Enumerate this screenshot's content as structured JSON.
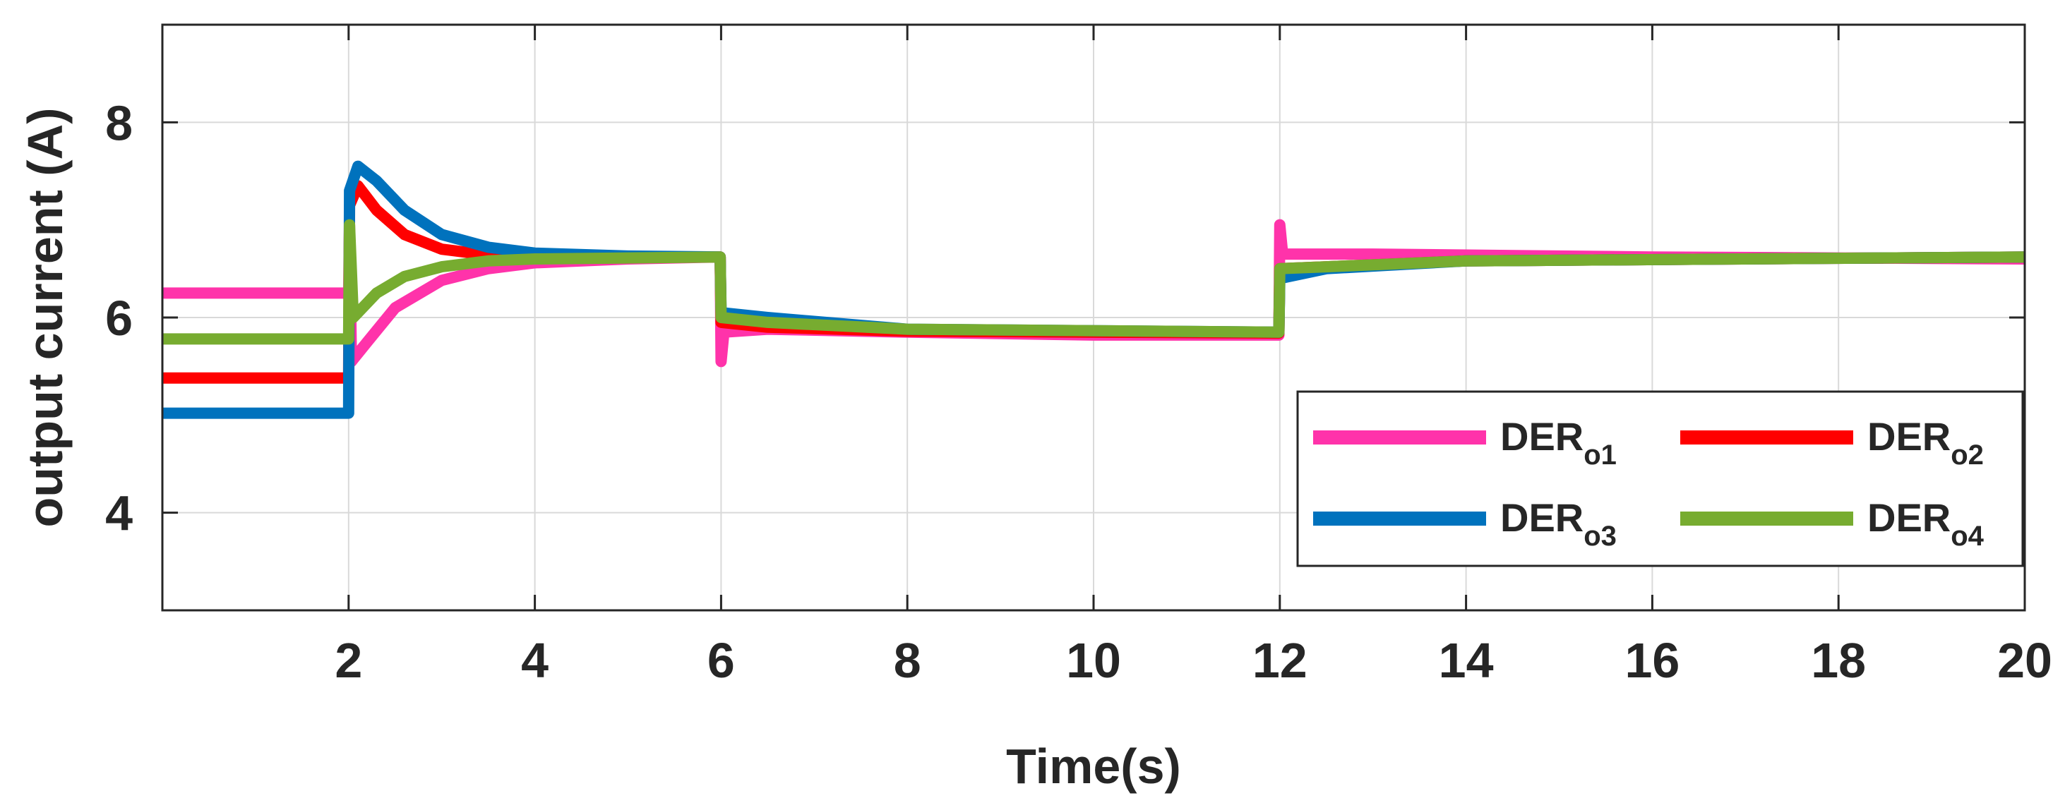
{
  "chart_data": {
    "type": "line",
    "xlabel": "Time(s)",
    "ylabel": "output current (A)",
    "xlim": [
      0,
      20
    ],
    "ylim": [
      3,
      9
    ],
    "xticks": [
      2,
      4,
      6,
      8,
      10,
      12,
      14,
      16,
      18,
      20
    ],
    "yticks": [
      4,
      6,
      8
    ],
    "grid": true,
    "legend_position": "lower-right",
    "legend_columns": 2,
    "series": [
      {
        "name": "DER",
        "subscript": "o1",
        "color": "#ff33aa",
        "points": [
          [
            0,
            6.25
          ],
          [
            2.0,
            6.25
          ],
          [
            2.01,
            6.95
          ],
          [
            2.03,
            5.55
          ],
          [
            2.2,
            5.75
          ],
          [
            2.5,
            6.1
          ],
          [
            3.0,
            6.38
          ],
          [
            3.5,
            6.5
          ],
          [
            4.0,
            6.56
          ],
          [
            5.0,
            6.6
          ],
          [
            5.99,
            6.62
          ],
          [
            6.0,
            5.55
          ],
          [
            6.03,
            5.85
          ],
          [
            6.5,
            5.88
          ],
          [
            8.0,
            5.85
          ],
          [
            10.0,
            5.82
          ],
          [
            11.99,
            5.82
          ],
          [
            12.0,
            6.95
          ],
          [
            12.03,
            6.65
          ],
          [
            13.0,
            6.65
          ],
          [
            16.0,
            6.62
          ],
          [
            20.0,
            6.6
          ]
        ]
      },
      {
        "name": "DER",
        "subscript": "o2",
        "color": "#ff0000",
        "points": [
          [
            0,
            5.38
          ],
          [
            2.0,
            5.38
          ],
          [
            2.01,
            7.15
          ],
          [
            2.1,
            7.35
          ],
          [
            2.3,
            7.1
          ],
          [
            2.6,
            6.85
          ],
          [
            3.0,
            6.7
          ],
          [
            3.5,
            6.64
          ],
          [
            4.0,
            6.62
          ],
          [
            5.99,
            6.62
          ],
          [
            6.0,
            5.95
          ],
          [
            6.5,
            5.9
          ],
          [
            8.0,
            5.86
          ],
          [
            11.99,
            5.84
          ],
          [
            12.0,
            6.5
          ],
          [
            12.5,
            6.52
          ],
          [
            14.0,
            6.58
          ],
          [
            20.0,
            6.62
          ]
        ]
      },
      {
        "name": "DER",
        "subscript": "o3",
        "color": "#0072bd",
        "points": [
          [
            0,
            5.02
          ],
          [
            2.0,
            5.02
          ],
          [
            2.01,
            7.3
          ],
          [
            2.1,
            7.55
          ],
          [
            2.3,
            7.4
          ],
          [
            2.6,
            7.1
          ],
          [
            3.0,
            6.85
          ],
          [
            3.5,
            6.72
          ],
          [
            4.0,
            6.66
          ],
          [
            5.0,
            6.63
          ],
          [
            5.99,
            6.62
          ],
          [
            6.0,
            6.05
          ],
          [
            6.5,
            6.0
          ],
          [
            8.0,
            5.88
          ],
          [
            11.99,
            5.85
          ],
          [
            12.0,
            6.4
          ],
          [
            12.5,
            6.5
          ],
          [
            14.0,
            6.58
          ],
          [
            20.0,
            6.62
          ]
        ]
      },
      {
        "name": "DER",
        "subscript": "o4",
        "color": "#77ac30",
        "points": [
          [
            0,
            5.78
          ],
          [
            2.0,
            5.78
          ],
          [
            2.01,
            6.95
          ],
          [
            2.05,
            6.0
          ],
          [
            2.3,
            6.25
          ],
          [
            2.6,
            6.42
          ],
          [
            3.0,
            6.52
          ],
          [
            3.5,
            6.58
          ],
          [
            4.0,
            6.6
          ],
          [
            5.99,
            6.62
          ],
          [
            6.0,
            6.0
          ],
          [
            6.5,
            5.95
          ],
          [
            8.0,
            5.88
          ],
          [
            11.99,
            5.85
          ],
          [
            12.0,
            6.5
          ],
          [
            12.5,
            6.52
          ],
          [
            14.0,
            6.58
          ],
          [
            20.0,
            6.62
          ]
        ]
      }
    ]
  }
}
